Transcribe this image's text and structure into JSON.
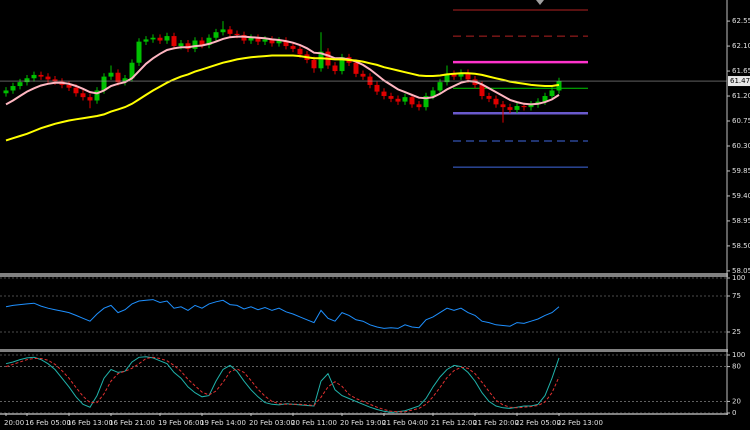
{
  "chart_data": [
    {
      "type": "candlestick",
      "categories": [
        "20:00",
        null,
        null,
        "16 Feb 05:00",
        null,
        null,
        null,
        null,
        null,
        "16 Feb 13:00",
        null,
        null,
        null,
        null,
        null,
        "16 Feb 21:00",
        null,
        null,
        null,
        null,
        null,
        null,
        "19 Feb 06:00",
        null,
        null,
        null,
        null,
        null,
        "19 Feb 14:00",
        null,
        null,
        null,
        null,
        null,
        null,
        "20 Feb 03:00",
        null,
        null,
        null,
        null,
        null,
        "20 Feb 11:00",
        null,
        null,
        null,
        null,
        null,
        null,
        "20 Feb 19:00",
        null,
        null,
        null,
        null,
        null,
        "21 Feb 04:00",
        null,
        null,
        null,
        null,
        null,
        null,
        "21 Feb 12:00",
        null,
        null,
        null,
        null,
        null,
        "21 Feb 20:00",
        null,
        null,
        null,
        null,
        null,
        "22 Feb 05:00",
        null,
        null,
        null,
        null,
        null,
        "22 Feb 13:00"
      ],
      "open": [
        61.25,
        61.3,
        61.38,
        61.45,
        61.52,
        61.58,
        61.55,
        61.5,
        61.46,
        61.4,
        61.35,
        61.25,
        61.18,
        61.12,
        61.3,
        61.55,
        61.62,
        61.45,
        61.52,
        61.8,
        62.18,
        62.22,
        62.25,
        62.2,
        62.28,
        62.1,
        62.15,
        62.05,
        62.2,
        62.12,
        62.25,
        62.35,
        62.4,
        62.32,
        62.3,
        62.2,
        62.25,
        62.18,
        62.22,
        62.15,
        62.2,
        62.1,
        62.05,
        61.95,
        61.85,
        61.7,
        62.0,
        61.75,
        61.65,
        61.9,
        61.8,
        61.6,
        61.55,
        61.4,
        61.28,
        61.2,
        61.15,
        61.1,
        61.18,
        61.05,
        61.0,
        61.2,
        61.3,
        61.45,
        61.6,
        61.55,
        61.62,
        61.5,
        61.4,
        61.2,
        61.15,
        61.05,
        61.0,
        60.95,
        61.02,
        61.0,
        61.05,
        61.1,
        61.2,
        61.3
      ],
      "high": [
        61.36,
        61.44,
        61.51,
        61.58,
        61.64,
        61.64,
        61.61,
        61.56,
        61.52,
        61.46,
        61.41,
        61.31,
        61.24,
        61.36,
        61.61,
        61.75,
        61.68,
        61.58,
        61.86,
        62.24,
        62.28,
        62.31,
        62.31,
        62.34,
        62.34,
        62.21,
        62.21,
        62.26,
        62.26,
        62.31,
        62.41,
        62.55,
        62.46,
        62.38,
        62.36,
        62.31,
        62.31,
        62.28,
        62.28,
        62.26,
        62.26,
        62.16,
        62.11,
        62.01,
        61.91,
        62.35,
        62.06,
        61.81,
        61.96,
        61.96,
        61.86,
        61.66,
        61.61,
        61.46,
        61.34,
        61.26,
        61.21,
        61.24,
        61.24,
        61.11,
        61.26,
        61.36,
        61.51,
        61.75,
        61.66,
        61.68,
        61.68,
        61.56,
        61.46,
        61.26,
        61.21,
        61.11,
        61.06,
        61.08,
        61.08,
        61.11,
        61.16,
        61.26,
        61.36,
        61.53
      ],
      "low": [
        61.19,
        61.24,
        61.32,
        61.39,
        61.46,
        61.49,
        61.44,
        61.4,
        61.34,
        61.29,
        61.19,
        61.12,
        60.98,
        61.06,
        61.24,
        61.49,
        61.39,
        61.39,
        61.46,
        61.74,
        62.12,
        62.16,
        62.14,
        62.14,
        62.04,
        62.04,
        61.99,
        61.99,
        62.06,
        62.06,
        62.19,
        62.29,
        62.26,
        62.24,
        62.14,
        62.14,
        62.12,
        62.12,
        62.09,
        62.09,
        62.04,
        61.99,
        61.89,
        61.79,
        61.62,
        61.64,
        61.69,
        61.59,
        61.59,
        61.74,
        61.54,
        61.49,
        61.34,
        61.22,
        61.14,
        61.09,
        61.04,
        61.04,
        60.99,
        60.94,
        60.94,
        61.14,
        61.24,
        61.39,
        61.49,
        61.49,
        61.44,
        61.34,
        61.14,
        61.09,
        60.99,
        60.72,
        60.89,
        60.89,
        60.94,
        60.94,
        60.99,
        61.04,
        61.14,
        61.24
      ],
      "close": [
        61.3,
        61.38,
        61.45,
        61.52,
        61.58,
        61.55,
        61.5,
        61.46,
        61.4,
        61.35,
        61.25,
        61.18,
        61.12,
        61.3,
        61.55,
        61.62,
        61.45,
        61.52,
        61.8,
        62.18,
        62.22,
        62.25,
        62.2,
        62.28,
        62.1,
        62.15,
        62.05,
        62.2,
        62.12,
        62.25,
        62.35,
        62.4,
        62.32,
        62.3,
        62.2,
        62.25,
        62.18,
        62.22,
        62.15,
        62.2,
        62.1,
        62.05,
        61.95,
        61.85,
        61.7,
        62.0,
        61.75,
        61.65,
        61.9,
        61.8,
        61.6,
        61.55,
        61.4,
        61.28,
        61.2,
        61.15,
        61.1,
        61.18,
        61.05,
        61.0,
        61.2,
        61.3,
        61.45,
        61.6,
        61.55,
        61.62,
        61.5,
        61.4,
        61.2,
        61.15,
        61.05,
        61.0,
        60.95,
        61.02,
        61.0,
        61.05,
        61.1,
        61.2,
        61.3,
        61.47
      ],
      "up_color": "#00c000",
      "down_color": "#e00000",
      "overlays": [
        {
          "color": "#ffb6c1",
          "values": [
            61.05,
            61.12,
            61.2,
            61.28,
            61.34,
            61.39,
            61.42,
            61.44,
            61.44,
            61.42,
            61.38,
            61.33,
            61.27,
            61.25,
            61.3,
            61.38,
            61.42,
            61.45,
            61.52,
            61.65,
            61.78,
            61.88,
            61.96,
            62.03,
            62.06,
            62.08,
            62.08,
            62.1,
            62.11,
            62.14,
            62.18,
            62.23,
            62.26,
            62.27,
            62.27,
            62.26,
            62.25,
            62.24,
            62.22,
            62.21,
            62.19,
            62.16,
            62.12,
            62.06,
            61.98,
            61.97,
            61.93,
            61.88,
            61.88,
            61.86,
            61.82,
            61.76,
            61.68,
            61.58,
            61.48,
            61.4,
            61.32,
            61.27,
            61.22,
            61.17,
            61.16,
            61.18,
            61.24,
            61.32,
            61.38,
            61.44,
            61.47,
            61.46,
            61.41,
            61.34,
            61.27,
            61.2,
            61.13,
            61.09,
            61.06,
            61.05,
            61.06,
            61.09,
            61.14,
            61.22
          ]
        },
        {
          "color": "#ffff00",
          "values": [
            60.4,
            60.44,
            60.48,
            60.52,
            60.57,
            60.62,
            60.66,
            60.7,
            60.73,
            60.76,
            60.78,
            60.8,
            60.82,
            60.84,
            60.87,
            60.92,
            60.96,
            61.0,
            61.06,
            61.14,
            61.22,
            61.3,
            61.37,
            61.44,
            61.5,
            61.55,
            61.59,
            61.64,
            61.68,
            61.72,
            61.76,
            61.8,
            61.83,
            61.86,
            61.88,
            61.9,
            61.91,
            61.92,
            61.93,
            61.93,
            61.93,
            61.93,
            61.92,
            61.9,
            61.88,
            61.88,
            61.87,
            61.86,
            61.86,
            61.85,
            61.84,
            61.82,
            61.79,
            61.76,
            61.72,
            61.69,
            61.66,
            61.63,
            61.6,
            61.57,
            61.56,
            61.56,
            61.57,
            61.59,
            61.6,
            61.61,
            61.61,
            61.6,
            61.58,
            61.55,
            61.52,
            61.49,
            61.46,
            61.44,
            61.42,
            61.4,
            61.39,
            61.38,
            61.38,
            61.4
          ]
        }
      ],
      "ylim": [
        58.03,
        62.93
      ],
      "yticks": [
        58.05,
        {
          "value": 58.5,
          "label": "58.50"
        },
        58.95,
        {
          "value": 59.4,
          "label": "59.40"
        },
        59.85,
        {
          "value": 60.3,
          "label": "60.30"
        },
        60.75,
        {
          "value": 61.2,
          "label": "61.20"
        },
        61.65,
        {
          "value": 62.1,
          "label": "62.10"
        },
        62.55
      ],
      "last_price": 61.47,
      "levels": [
        {
          "value": 62.75,
          "color": "#b22222",
          "style": "solid"
        },
        {
          "value": 62.28,
          "color": "#b22222",
          "style": "dashed"
        },
        {
          "value": 61.81,
          "color": "#ff33cc",
          "style": "bold"
        },
        {
          "value": 61.34,
          "color": "#00c800",
          "style": "solid"
        },
        {
          "value": 60.89,
          "color": "#6a5acd",
          "style": "bold"
        },
        {
          "value": 60.39,
          "color": "#4169e1",
          "style": "dashed"
        },
        {
          "value": 59.92,
          "color": "#4169e1",
          "style": "solid"
        }
      ]
    },
    {
      "type": "line",
      "series": [
        {
          "color": "#1e90ff",
          "values": [
            60,
            62,
            63,
            64,
            65,
            61,
            58,
            56,
            54,
            52,
            48,
            44,
            40,
            50,
            58,
            62,
            52,
            56,
            64,
            68,
            69,
            70,
            66,
            68,
            58,
            60,
            55,
            62,
            58,
            64,
            67,
            69,
            63,
            62,
            57,
            60,
            56,
            59,
            55,
            58,
            53,
            50,
            46,
            42,
            38,
            55,
            44,
            40,
            52,
            48,
            42,
            40,
            35,
            32,
            30,
            31,
            30,
            35,
            32,
            31,
            42,
            46,
            52,
            58,
            55,
            58,
            52,
            48,
            40,
            38,
            35,
            34,
            33,
            38,
            37,
            40,
            43,
            48,
            52,
            60
          ]
        }
      ],
      "ylim": [
        0,
        100
      ],
      "yticks": [
        25,
        75,
        100
      ]
    },
    {
      "type": "line",
      "series": [
        {
          "color": "#20b2aa",
          "values": [
            85,
            88,
            92,
            95,
            96,
            92,
            85,
            75,
            60,
            45,
            28,
            15,
            10,
            30,
            60,
            75,
            70,
            72,
            88,
            96,
            97,
            95,
            90,
            85,
            70,
            60,
            45,
            35,
            28,
            30,
            55,
            75,
            82,
            72,
            55,
            40,
            28,
            18,
            15,
            14,
            16,
            15,
            14,
            13,
            12,
            55,
            68,
            40,
            30,
            25,
            20,
            15,
            10,
            6,
            3,
            1,
            2,
            4,
            8,
            12,
            25,
            45,
            62,
            75,
            82,
            80,
            70,
            55,
            35,
            20,
            12,
            9,
            8,
            10,
            12,
            12,
            15,
            30,
            60,
            95
          ]
        },
        {
          "color": "#e03030",
          "dashed": true,
          "values": [
            80,
            84,
            88,
            92,
            94,
            94,
            91,
            84,
            73,
            60,
            44,
            29,
            18,
            18,
            33,
            55,
            68,
            72,
            77,
            85,
            94,
            96,
            94,
            90,
            82,
            72,
            58,
            47,
            36,
            31,
            38,
            53,
            71,
            76,
            70,
            56,
            41,
            29,
            20,
            16,
            15,
            15,
            15,
            14,
            13,
            27,
            45,
            54,
            46,
            32,
            25,
            20,
            15,
            10,
            6,
            3,
            2,
            2,
            5,
            8,
            15,
            28,
            44,
            61,
            73,
            79,
            77,
            68,
            53,
            37,
            22,
            14,
            10,
            9,
            10,
            11,
            13,
            19,
            35,
            62
          ]
        }
      ],
      "ylim": [
        0,
        100
      ],
      "yticks": [
        0,
        20,
        80,
        100
      ]
    }
  ]
}
